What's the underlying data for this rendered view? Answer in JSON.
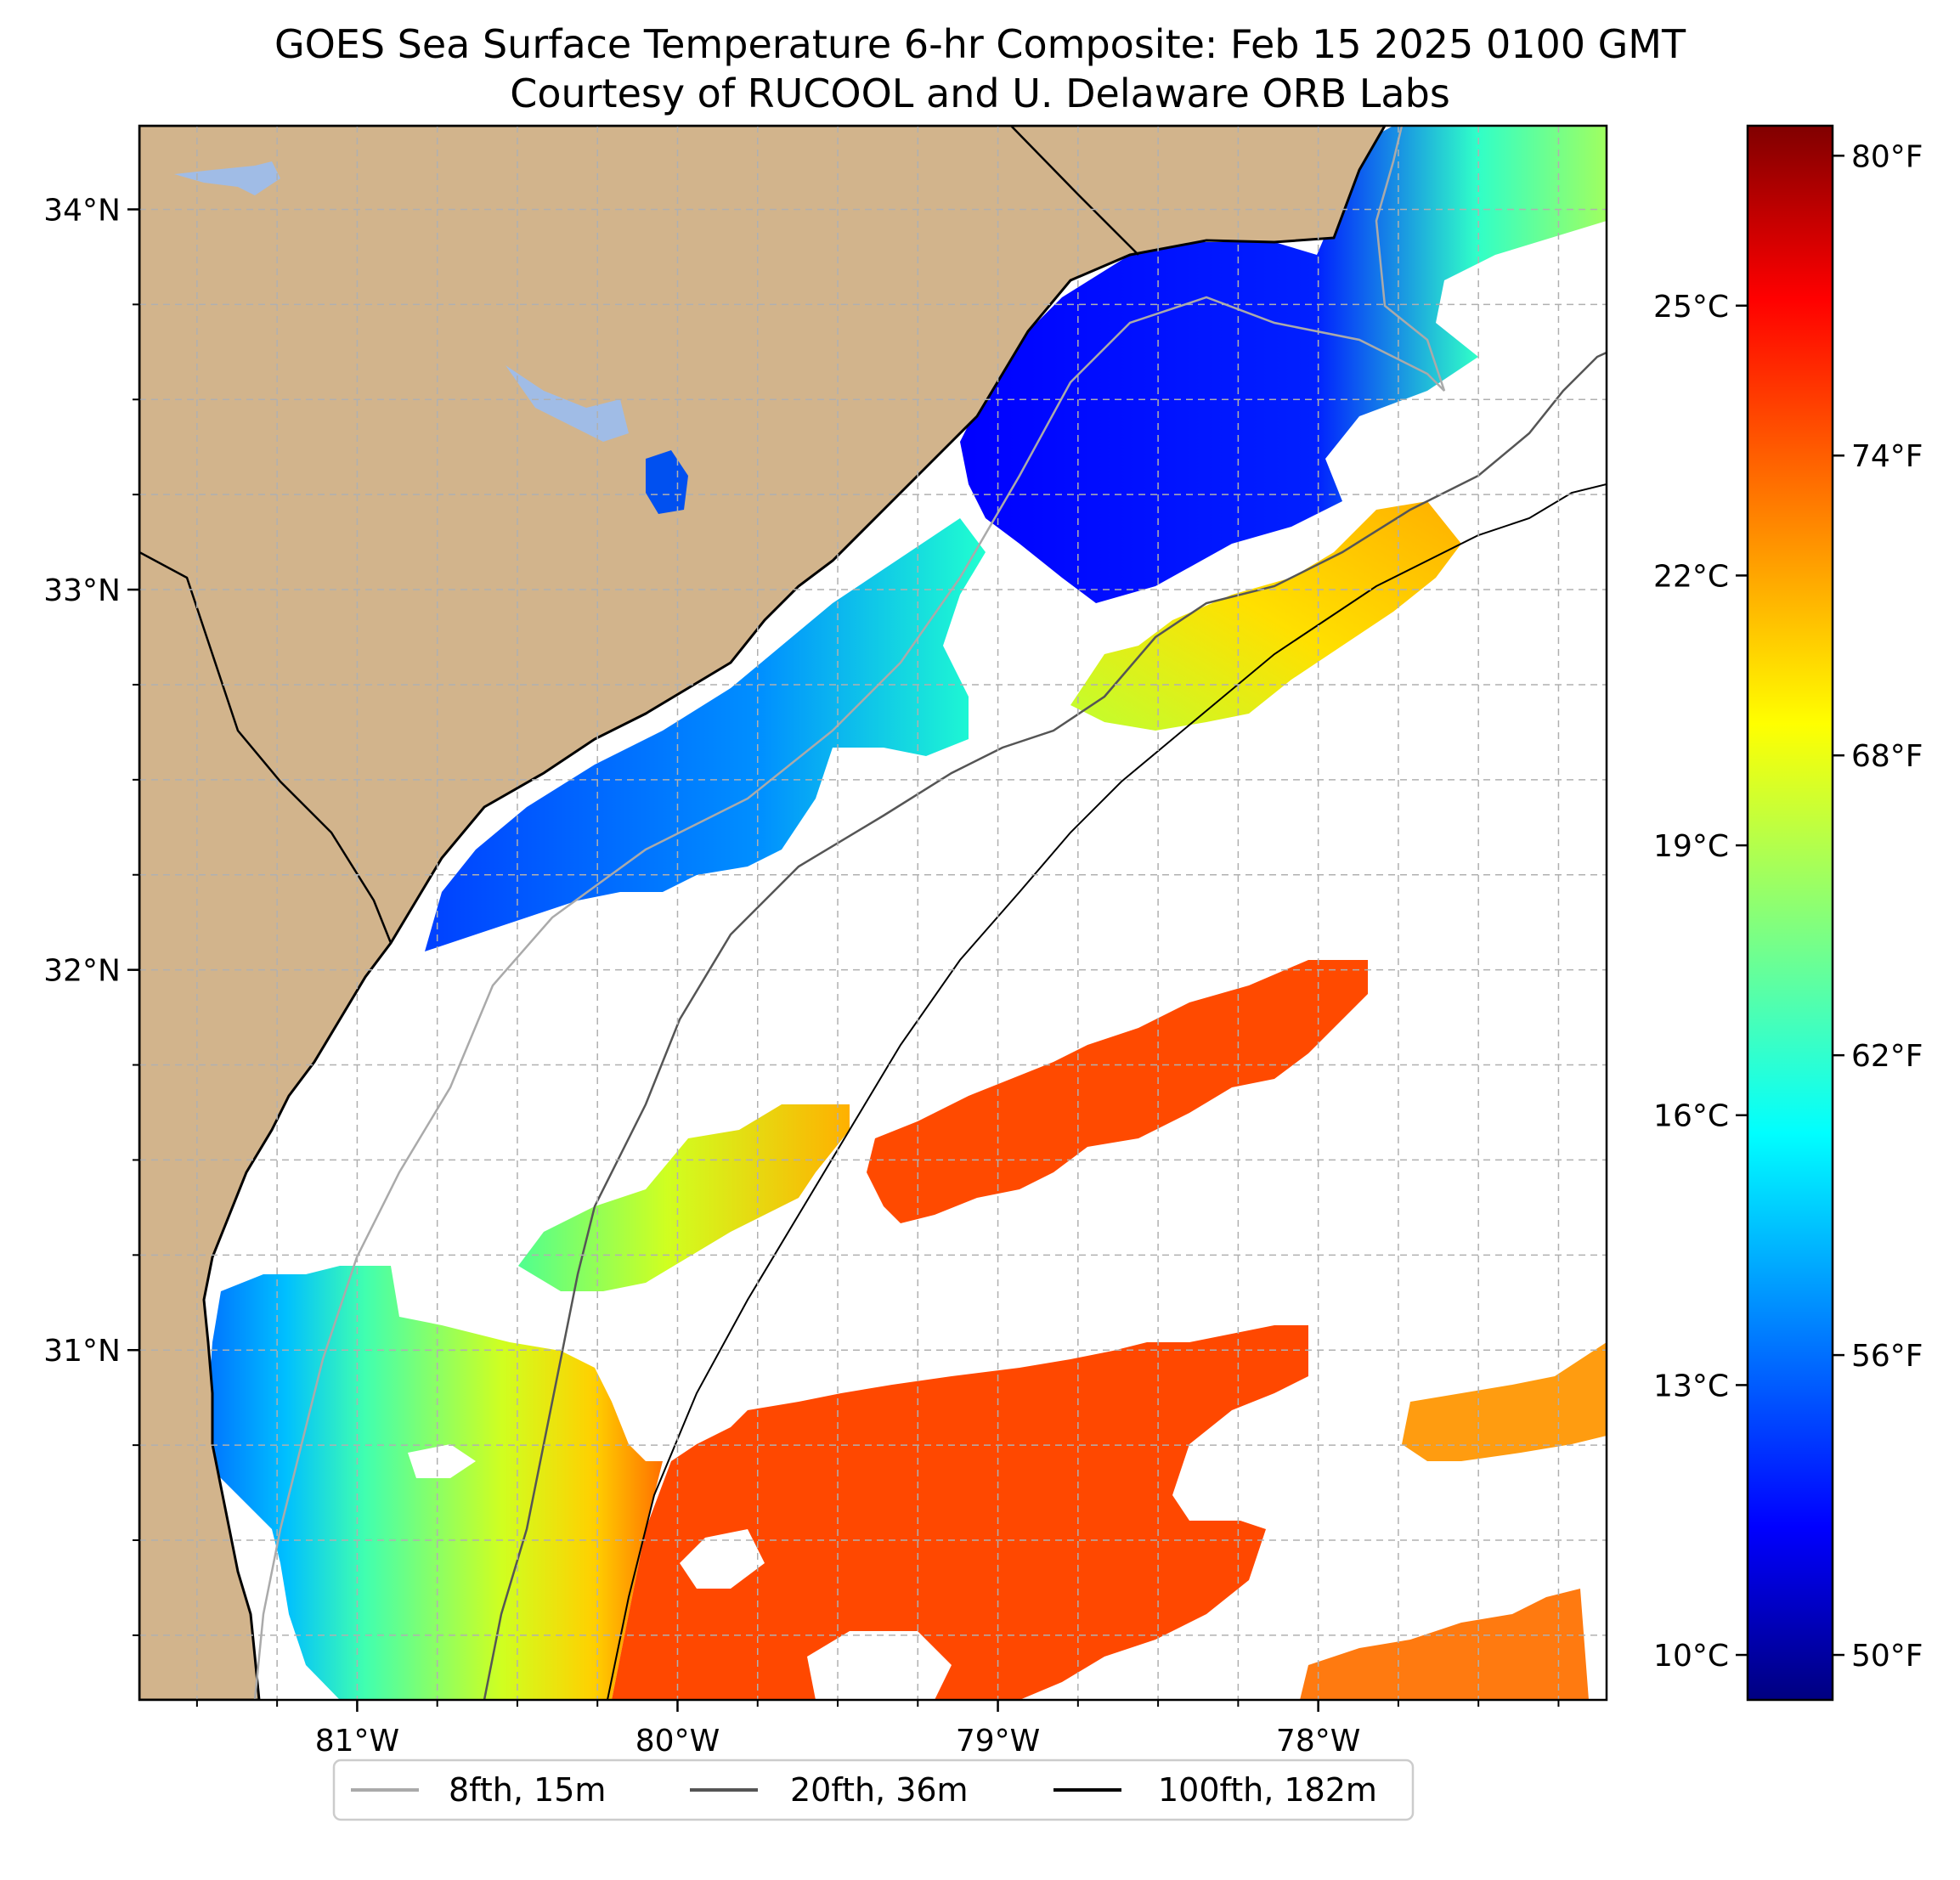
{
  "title": {
    "line1": "GOES Sea Surface Temperature 6-hr Composite: Feb 15 2025 0100 GMT",
    "line2": "Courtesy of RUCOOL and U. Delaware ORB Labs"
  },
  "colors": {
    "land": "#d2b48c",
    "lake": "#a0bce6",
    "coast": "#000000",
    "contour_8fth": "#aaaaaa",
    "contour_20fth": "#555555",
    "contour_100fth": "#000000",
    "grid": "#b0b0b0"
  },
  "map": {
    "lon_range": [
      -81.68,
      -77.1
    ],
    "lat_range": [
      30.08,
      34.22
    ],
    "lat_ticks": [
      {
        "value": 34,
        "label": "34°N"
      },
      {
        "value": 33,
        "label": "33°N"
      },
      {
        "value": 32,
        "label": "32°N"
      },
      {
        "value": 31,
        "label": "31°N"
      }
    ],
    "lon_ticks": [
      {
        "value": -81,
        "label": "81°W"
      },
      {
        "value": -80,
        "label": "80°W"
      },
      {
        "value": -79,
        "label": "79°W"
      },
      {
        "value": -78,
        "label": "78°W"
      }
    ],
    "gridlines": "dashed, every 0.25°"
  },
  "colorbar": {
    "colormap": "jet",
    "range_c": [
      9.5,
      27.0
    ],
    "celsius_ticks": [
      {
        "value": 10,
        "label": "10°C"
      },
      {
        "value": 13,
        "label": "13°C"
      },
      {
        "value": 16,
        "label": "16°C"
      },
      {
        "value": 19,
        "label": "19°C"
      },
      {
        "value": 22,
        "label": "22°C"
      },
      {
        "value": 25,
        "label": "25°C"
      }
    ],
    "fahrenheit_ticks": [
      {
        "value": 50,
        "label": "50°F"
      },
      {
        "value": 56,
        "label": "56°F"
      },
      {
        "value": 62,
        "label": "62°F"
      },
      {
        "value": 68,
        "label": "68°F"
      },
      {
        "value": 74,
        "label": "74°F"
      },
      {
        "value": 80,
        "label": "80°F"
      }
    ]
  },
  "legend": {
    "entries": [
      {
        "label": "8fth, 15m",
        "color": "#aaaaaa"
      },
      {
        "label": "20fth, 36m",
        "color": "#555555"
      },
      {
        "label": "100fth, 182m",
        "color": "#000000"
      }
    ]
  }
}
